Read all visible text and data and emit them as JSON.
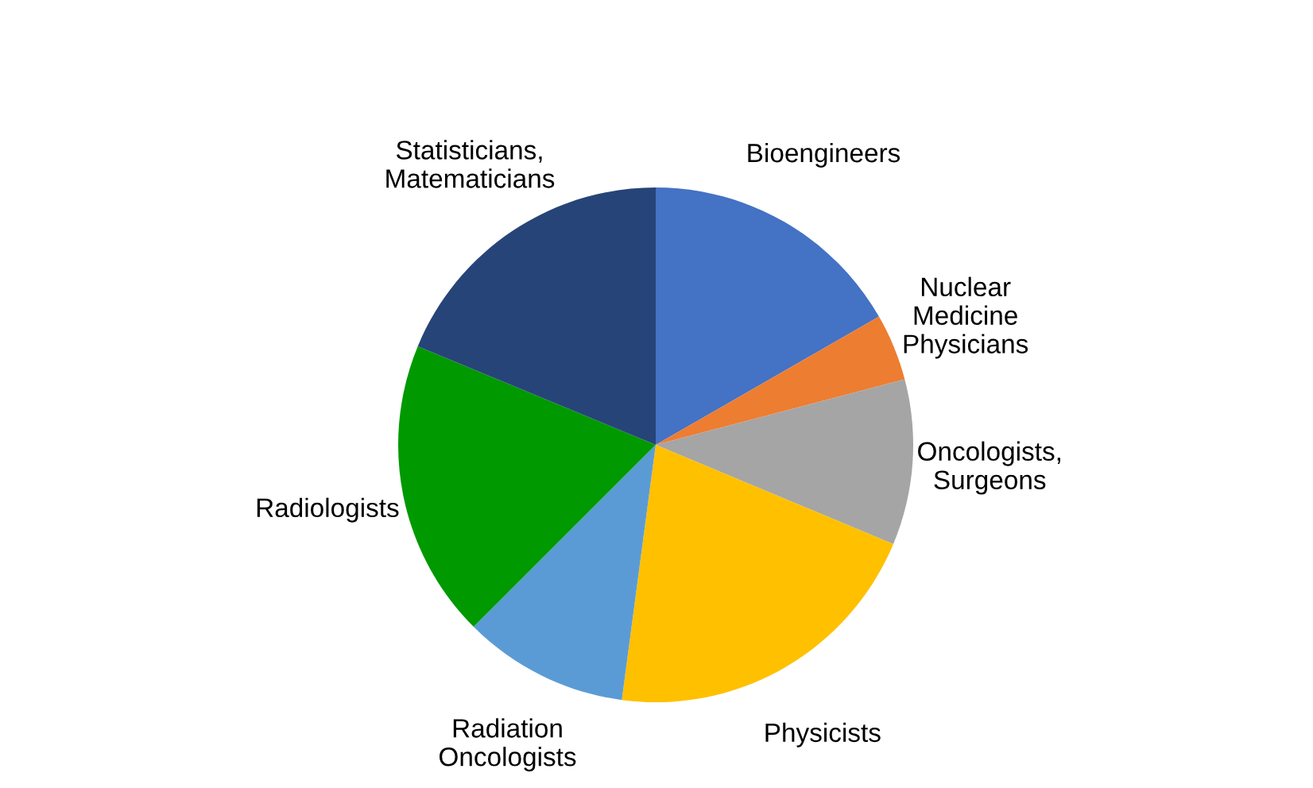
{
  "chart_data": {
    "type": "pie",
    "categories": [
      "Bioengineers",
      "Nuclear\nMedicine\nPhysicians",
      "Oncologists,\nSurgeons",
      "Physicists",
      "Radiation\nOncologists",
      "Radiologists",
      "Statisticians,\nMatematicians"
    ],
    "values": [
      16.7,
      4.2,
      10.4,
      20.8,
      10.4,
      18.75,
      18.75
    ],
    "colors": [
      "#4472c4",
      "#ed7d31",
      "#a5a5a5",
      "#ffc000",
      "#5b9bd5",
      "#009900",
      "#264478"
    ],
    "legend": false
  }
}
